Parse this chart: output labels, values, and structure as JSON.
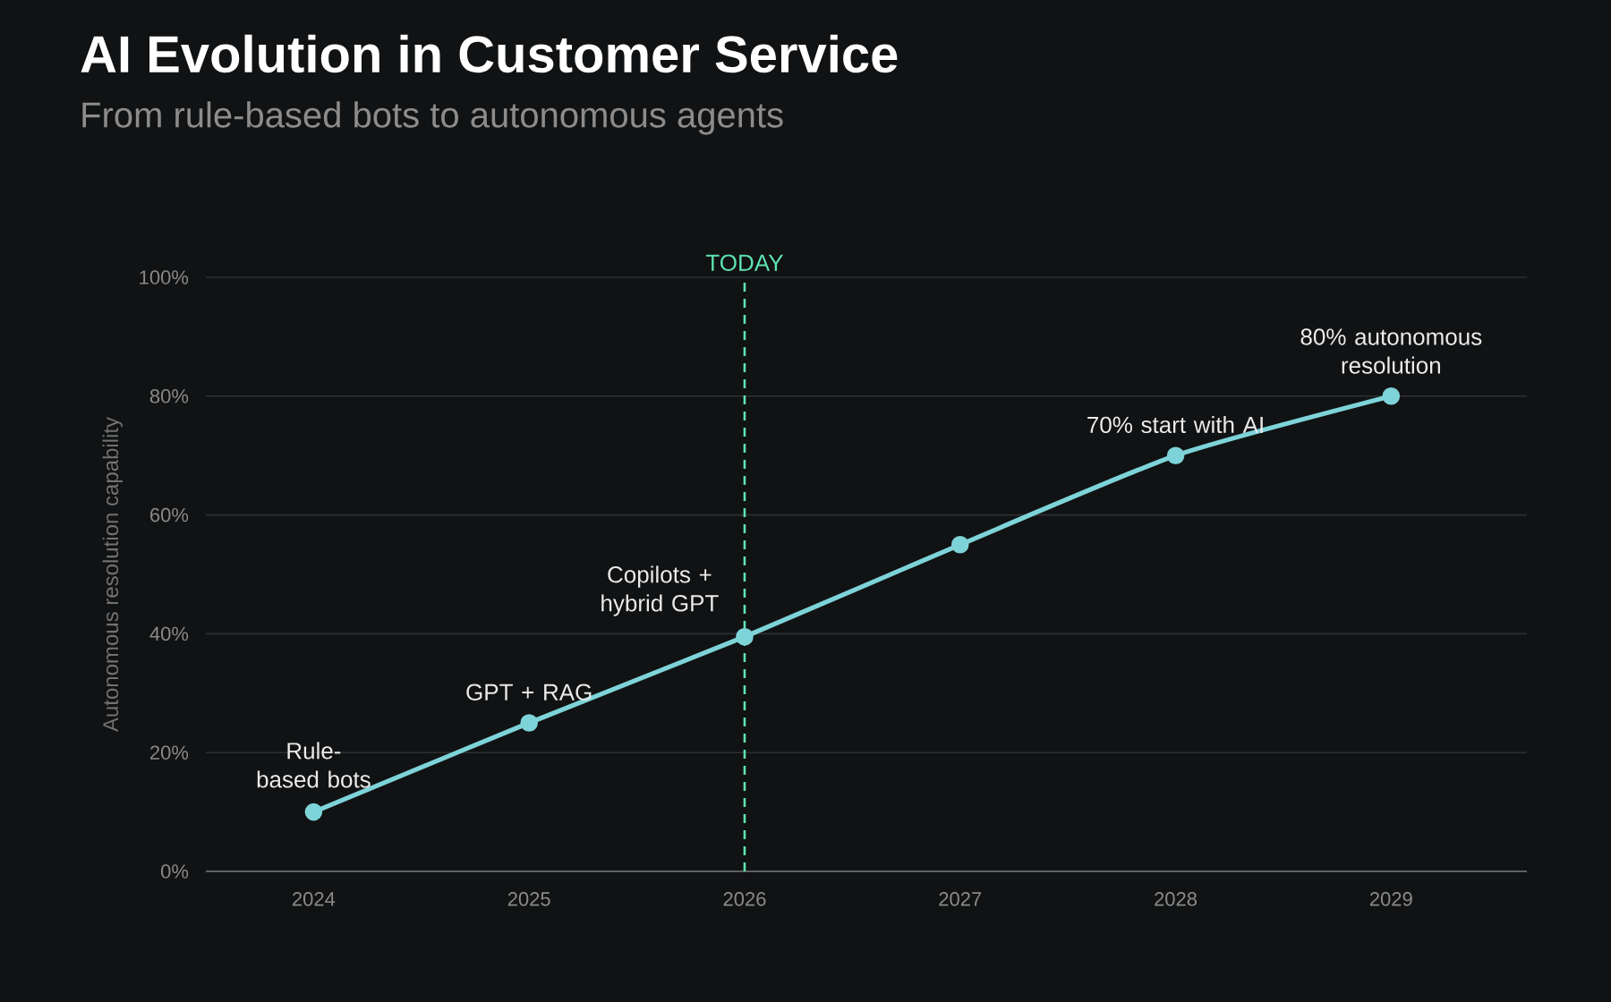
{
  "chart_data": {
    "type": "line",
    "title": "AI Evolution in Customer Service",
    "subtitle": "From rule-based bots to autonomous agents",
    "ylabel": "Autonomous resolution capability",
    "x": [
      2024,
      2025,
      2026,
      2027,
      2028,
      2029
    ],
    "series": [
      {
        "color": "#7dd3d8",
        "values": [
          10,
          25,
          39.5,
          55,
          70,
          80
        ]
      }
    ],
    "xlim": [
      2023.5,
      2029.63
    ],
    "xticks": [
      2024,
      2025,
      2026,
      2027,
      2028,
      2029
    ],
    "ylim": [
      0,
      100
    ],
    "yticks": [
      {
        "value": 0,
        "label": "0%"
      },
      {
        "value": 20,
        "label": "20%"
      },
      {
        "value": 40,
        "label": "40%"
      },
      {
        "value": 60,
        "label": "60%"
      },
      {
        "value": 80,
        "label": "80%"
      },
      {
        "value": 100,
        "label": "100%"
      }
    ],
    "grid": "y",
    "marker": "circle",
    "line_style": "solid",
    "ref_lines": [
      {
        "axis": "x",
        "value": 2026,
        "label": "TODAY",
        "color": "#5ee3b0",
        "line_style": "dashed"
      }
    ],
    "annotations": [
      {
        "text": "Rule-based bots",
        "x": 2024,
        "y": 10
      },
      {
        "text": "GPT + RAG",
        "x": 2025,
        "y": 25
      },
      {
        "text": "Copilots + hybrid GPT",
        "x": 2026,
        "y": 39.5
      },
      {
        "text": "70% start with AI",
        "x": 2028,
        "y": 70
      },
      {
        "text": "80% autonomous resolution",
        "x": 2029,
        "y": 80
      }
    ]
  }
}
